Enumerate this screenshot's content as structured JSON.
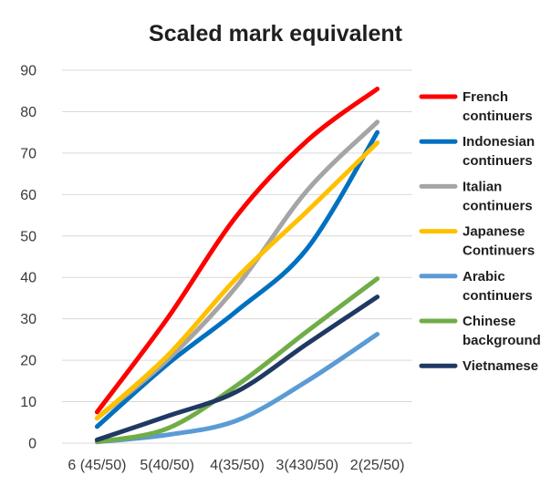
{
  "chart_data": {
    "type": "line",
    "title": "Scaled mark equivalent",
    "xlabel": "",
    "ylabel": "",
    "categories": [
      "6 (45/50)",
      "5(40/50)",
      "4(35/50)",
      "3(430/50)",
      "2(25/50)"
    ],
    "ylim": [
      0,
      90
    ],
    "yticks": [
      0,
      10,
      20,
      30,
      40,
      50,
      60,
      70,
      80,
      90
    ],
    "grid": true,
    "legend_position": "right",
    "smooth": true,
    "series": [
      {
        "name": "French continuers",
        "legend_lines": [
          "French",
          "continuers"
        ],
        "color": "#ff0000",
        "values": [
          7.5,
          30,
          55,
          73,
          85.5
        ]
      },
      {
        "name": "Indonesian continuers",
        "legend_lines": [
          "Indonesian",
          "continuers"
        ],
        "color": "#0070c0",
        "values": [
          4,
          19,
          32,
          47,
          75
        ]
      },
      {
        "name": "Italian continuers",
        "legend_lines": [
          "Italian",
          "continuers"
        ],
        "color": "#a5a5a5",
        "values": [
          6,
          20,
          38,
          61,
          77.5
        ]
      },
      {
        "name": "Japanese Continuers",
        "legend_lines": [
          "Japanese",
          "Continuers"
        ],
        "color": "#ffc000",
        "values": [
          6,
          21,
          40,
          56,
          72.5
        ]
      },
      {
        "name": "Arabic continuers",
        "legend_lines": [
          "Arabic",
          "continuers"
        ],
        "color": "#5b9bd5",
        "values": [
          0.3,
          2,
          5.5,
          15,
          26.3
        ]
      },
      {
        "name": "Chinese background",
        "legend_lines": [
          "Chinese",
          "background"
        ],
        "color": "#70ad47",
        "values": [
          0.3,
          3.5,
          14,
          27,
          39.7
        ]
      },
      {
        "name": "Vietnamese",
        "legend_lines": [
          "Vietnamese"
        ],
        "color": "#203864",
        "values": [
          0.8,
          6.5,
          12.5,
          24,
          35.3
        ]
      }
    ]
  }
}
